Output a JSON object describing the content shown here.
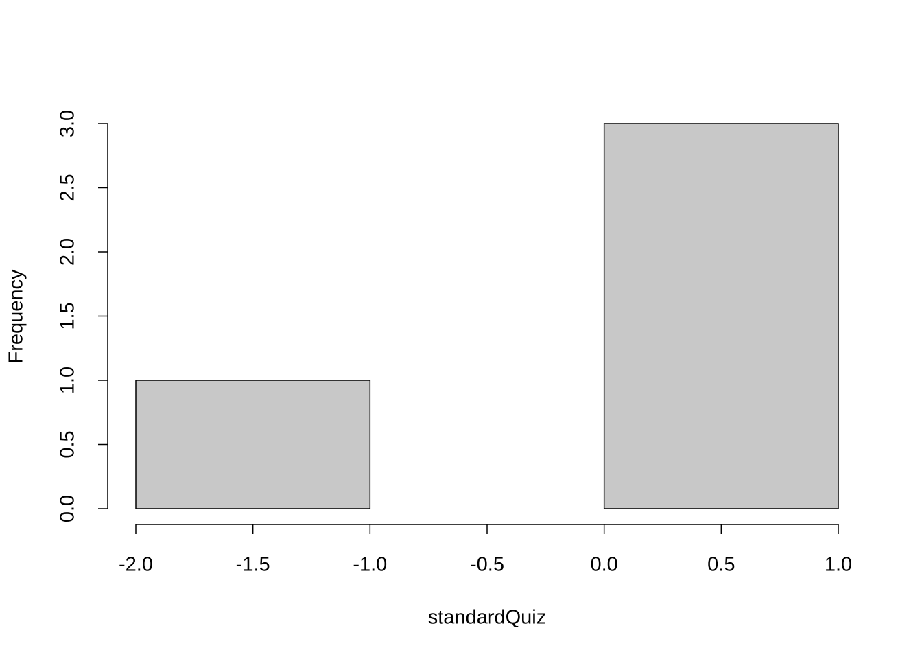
{
  "chart_data": {
    "type": "histogram",
    "x_label": "standardQuiz",
    "y_label": "Frequency",
    "bins": [
      -2,
      -1,
      0,
      1
    ],
    "values": [
      1,
      0,
      3
    ],
    "color": "#c8c8c8",
    "xlim": [
      -2,
      1
    ],
    "xticks": [
      {
        "value": -2,
        "label": "-2.0"
      },
      {
        "value": -1.5,
        "label": "-1.5"
      },
      {
        "value": -1,
        "label": "-1.0"
      },
      {
        "value": -0.5,
        "label": "-0.5"
      },
      {
        "value": 0,
        "label": "0.0"
      },
      0.5,
      {
        "value": 1,
        "label": "1.0"
      }
    ],
    "ylim": [
      0,
      3
    ],
    "yticks": [
      {
        "value": 0,
        "label": "0.0"
      },
      0.5,
      {
        "value": 1,
        "label": "1.0"
      },
      1.5,
      {
        "value": 2,
        "label": "2.0"
      },
      2.5,
      {
        "value": 3,
        "label": "3.0"
      }
    ]
  }
}
